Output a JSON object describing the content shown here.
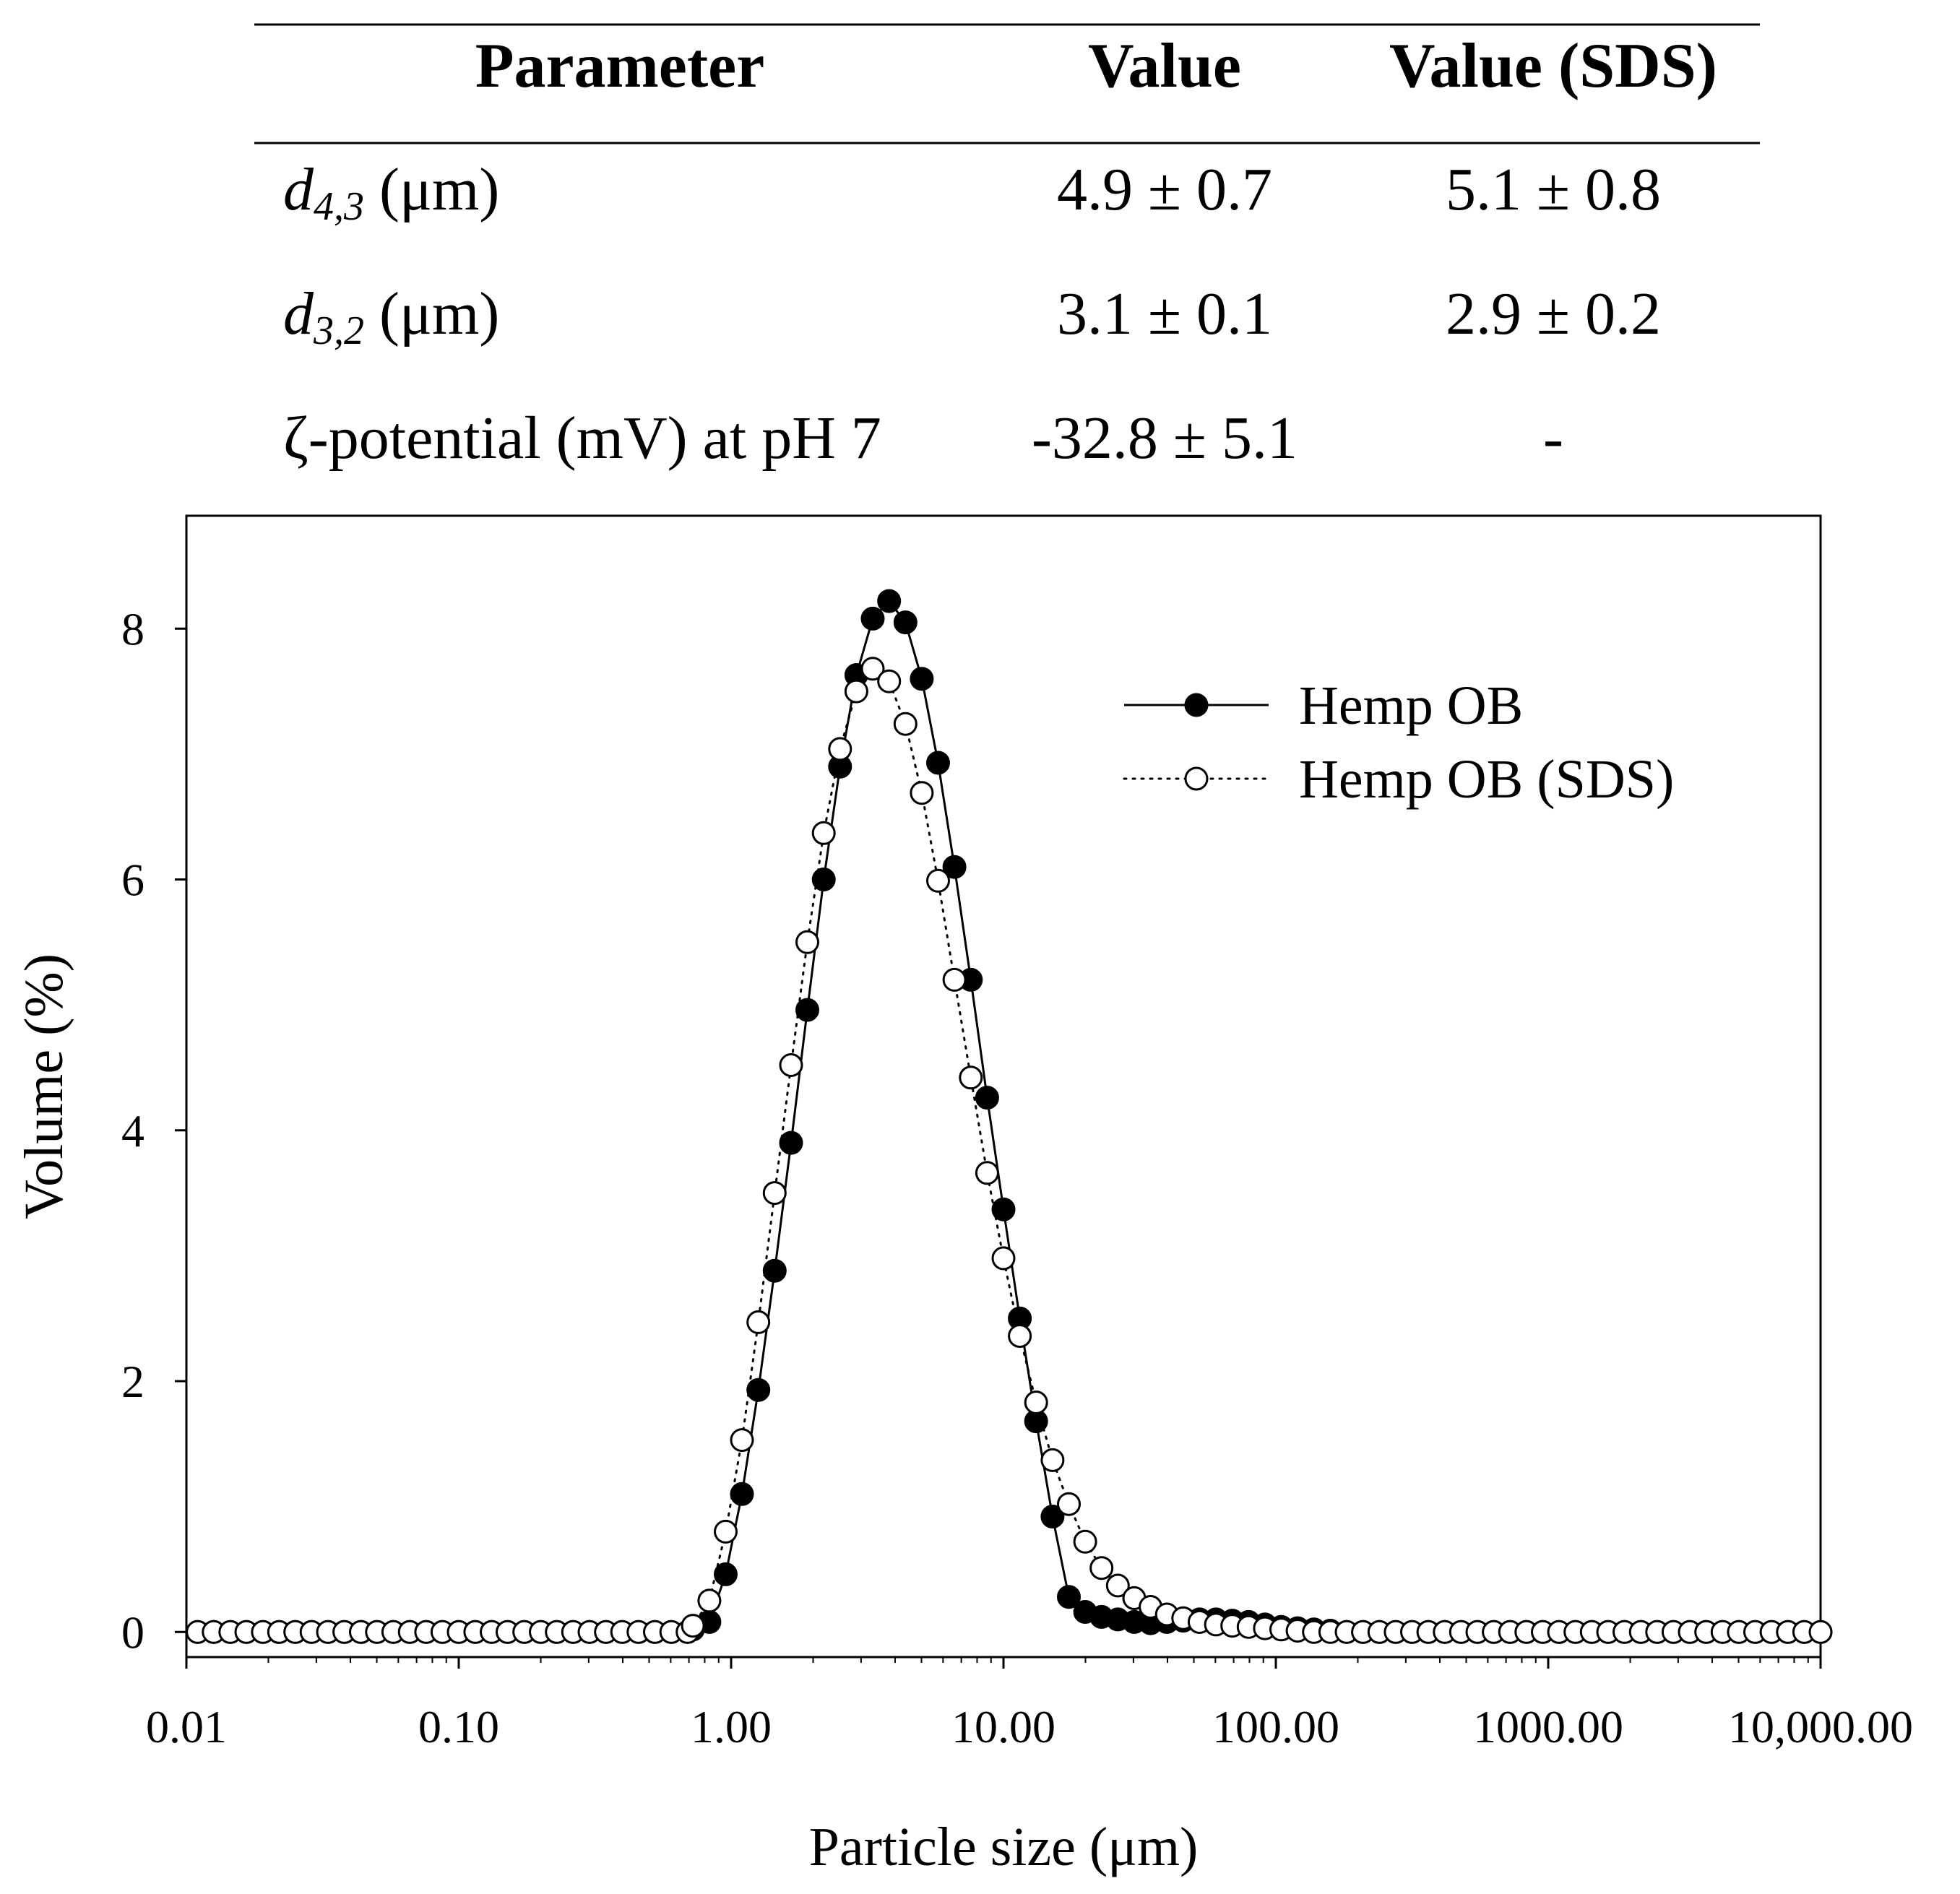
{
  "table": {
    "headers": [
      "Parameter",
      "Value",
      "Value (SDS)"
    ],
    "rows": [
      {
        "param_main": "d",
        "param_sub": "4,3",
        "param_unit": " (μm)",
        "value": "4.9 ± 0.7",
        "value_sds": "5.1 ± 0.8"
      },
      {
        "param_main": "d",
        "param_sub": "3,2",
        "param_unit": " (μm)",
        "value": "3.1 ± 0.1",
        "value_sds": "2.9 ± 0.2"
      },
      {
        "param_main": "ζ-potential (mV) at pH 7",
        "param_sub": "",
        "param_unit": "",
        "value": "-32.8 ± 5.1",
        "value_sds": "-"
      }
    ]
  },
  "chart_data": {
    "type": "scatter",
    "title": "",
    "xlabel": "Particle size (μm)",
    "ylabel": "Volume (%)",
    "xscale": "log",
    "xlim": [
      0.01,
      10000
    ],
    "ylim": [
      -0.2,
      8.9
    ],
    "xticks": [
      0.01,
      0.1,
      1,
      10,
      100,
      1000,
      10000
    ],
    "xtick_labels": [
      "0.01",
      "0.10",
      "1.00",
      "10.00",
      "100.00",
      "1000.00",
      "10,000.00"
    ],
    "yticks": [
      0,
      2,
      4,
      6,
      8
    ],
    "ytick_labels": [
      "0",
      "2",
      "4",
      "6",
      "8"
    ],
    "legend_position": "top-right",
    "series": [
      {
        "name": "Hemp OB",
        "marker": "filled-circle",
        "line": "solid",
        "x": [
          0.011,
          0.0126,
          0.0145,
          0.0166,
          0.0191,
          0.0219,
          0.0251,
          0.0288,
          0.0331,
          0.038,
          0.0437,
          0.0501,
          0.0575,
          0.0661,
          0.0759,
          0.0871,
          0.1,
          0.115,
          0.132,
          0.151,
          0.174,
          0.2,
          0.229,
          0.263,
          0.302,
          0.347,
          0.398,
          0.457,
          0.525,
          0.603,
          0.692,
          0.724,
          0.832,
          0.955,
          1.096,
          1.259,
          1.445,
          1.66,
          1.905,
          2.188,
          2.512,
          2.884,
          3.311,
          3.802,
          4.365,
          5.012,
          5.754,
          6.607,
          7.586,
          8.71,
          10.0,
          11.48,
          13.18,
          15.14,
          17.38,
          19.95,
          22.91,
          26.3,
          30.2,
          34.67,
          39.81,
          45.71,
          52.48,
          60.26,
          69.18,
          79.43,
          91.2,
          104.7,
          120.2,
          138.0,
          158.5,
          182.0,
          208.9,
          239.9,
          275.4,
          316.2,
          363.1,
          416.9,
          478.6,
          549.5,
          631.0,
          724.4,
          831.8,
          955.0,
          1096,
          1259,
          1445,
          1660,
          1905,
          2188,
          2512,
          2884,
          3311,
          3802,
          4365,
          5012,
          5754,
          6607,
          7586,
          8710,
          10000
        ],
        "y": [
          0,
          0,
          0,
          0,
          0,
          0,
          0,
          0,
          0,
          0,
          0,
          0,
          0,
          0,
          0,
          0,
          0,
          0,
          0,
          0,
          0,
          0,
          0,
          0,
          0,
          0,
          0,
          0,
          0,
          0,
          0,
          0.02,
          0.08,
          0.46,
          1.1,
          1.93,
          2.88,
          3.9,
          4.96,
          6.0,
          6.9,
          7.63,
          8.08,
          8.22,
          8.05,
          7.6,
          6.93,
          6.1,
          5.2,
          4.26,
          3.37,
          2.5,
          1.68,
          0.92,
          0.28,
          0.16,
          0.12,
          0.1,
          0.08,
          0.07,
          0.08,
          0.09,
          0.1,
          0.1,
          0.09,
          0.08,
          0.06,
          0.04,
          0.03,
          0.02,
          0.01,
          0,
          0,
          0,
          0,
          0,
          0,
          0,
          0,
          0,
          0,
          0,
          0,
          0,
          0,
          0,
          0,
          0,
          0,
          0,
          0,
          0,
          0,
          0,
          0,
          0,
          0,
          0,
          0,
          0,
          0
        ]
      },
      {
        "name": "Hemp OB (SDS)",
        "marker": "open-circle",
        "line": "dotted",
        "x": [
          0.011,
          0.0126,
          0.0145,
          0.0166,
          0.0191,
          0.0219,
          0.0251,
          0.0288,
          0.0331,
          0.038,
          0.0437,
          0.0501,
          0.0575,
          0.0661,
          0.0759,
          0.0871,
          0.1,
          0.115,
          0.132,
          0.151,
          0.174,
          0.2,
          0.229,
          0.263,
          0.302,
          0.347,
          0.398,
          0.457,
          0.525,
          0.603,
          0.692,
          0.724,
          0.832,
          0.955,
          1.096,
          1.259,
          1.445,
          1.66,
          1.905,
          2.188,
          2.512,
          2.884,
          3.311,
          3.802,
          4.365,
          5.012,
          5.754,
          6.607,
          7.586,
          8.71,
          10.0,
          11.48,
          13.18,
          15.14,
          17.38,
          19.95,
          22.91,
          26.3,
          30.2,
          34.67,
          39.81,
          45.71,
          52.48,
          60.26,
          69.18,
          79.43,
          91.2,
          104.7,
          120.2,
          138.0,
          158.5,
          182.0,
          208.9,
          239.9,
          275.4,
          316.2,
          363.1,
          416.9,
          478.6,
          549.5,
          631.0,
          724.4,
          831.8,
          955.0,
          1096,
          1259,
          1445,
          1660,
          1905,
          2188,
          2512,
          2884,
          3311,
          3802,
          4365,
          5012,
          5754,
          6607,
          7586,
          8710,
          10000
        ],
        "y": [
          0,
          0,
          0,
          0,
          0,
          0,
          0,
          0,
          0,
          0,
          0,
          0,
          0,
          0,
          0,
          0,
          0,
          0,
          0,
          0,
          0,
          0,
          0,
          0,
          0,
          0,
          0,
          0,
          0,
          0,
          0,
          0.05,
          0.25,
          0.8,
          1.53,
          2.47,
          3.5,
          4.52,
          5.5,
          6.37,
          7.04,
          7.5,
          7.68,
          7.58,
          7.24,
          6.69,
          5.99,
          5.2,
          4.42,
          3.66,
          2.98,
          2.36,
          1.83,
          1.37,
          1.02,
          0.72,
          0.51,
          0.37,
          0.27,
          0.2,
          0.14,
          0.11,
          0.08,
          0.06,
          0.05,
          0.04,
          0.03,
          0.02,
          0.01,
          0,
          0,
          0,
          0,
          0,
          0,
          0,
          0,
          0,
          0,
          0,
          0,
          0,
          0,
          0,
          0,
          0,
          0,
          0,
          0,
          0,
          0,
          0,
          0,
          0,
          0,
          0,
          0,
          0,
          0,
          0,
          0
        ]
      }
    ]
  }
}
